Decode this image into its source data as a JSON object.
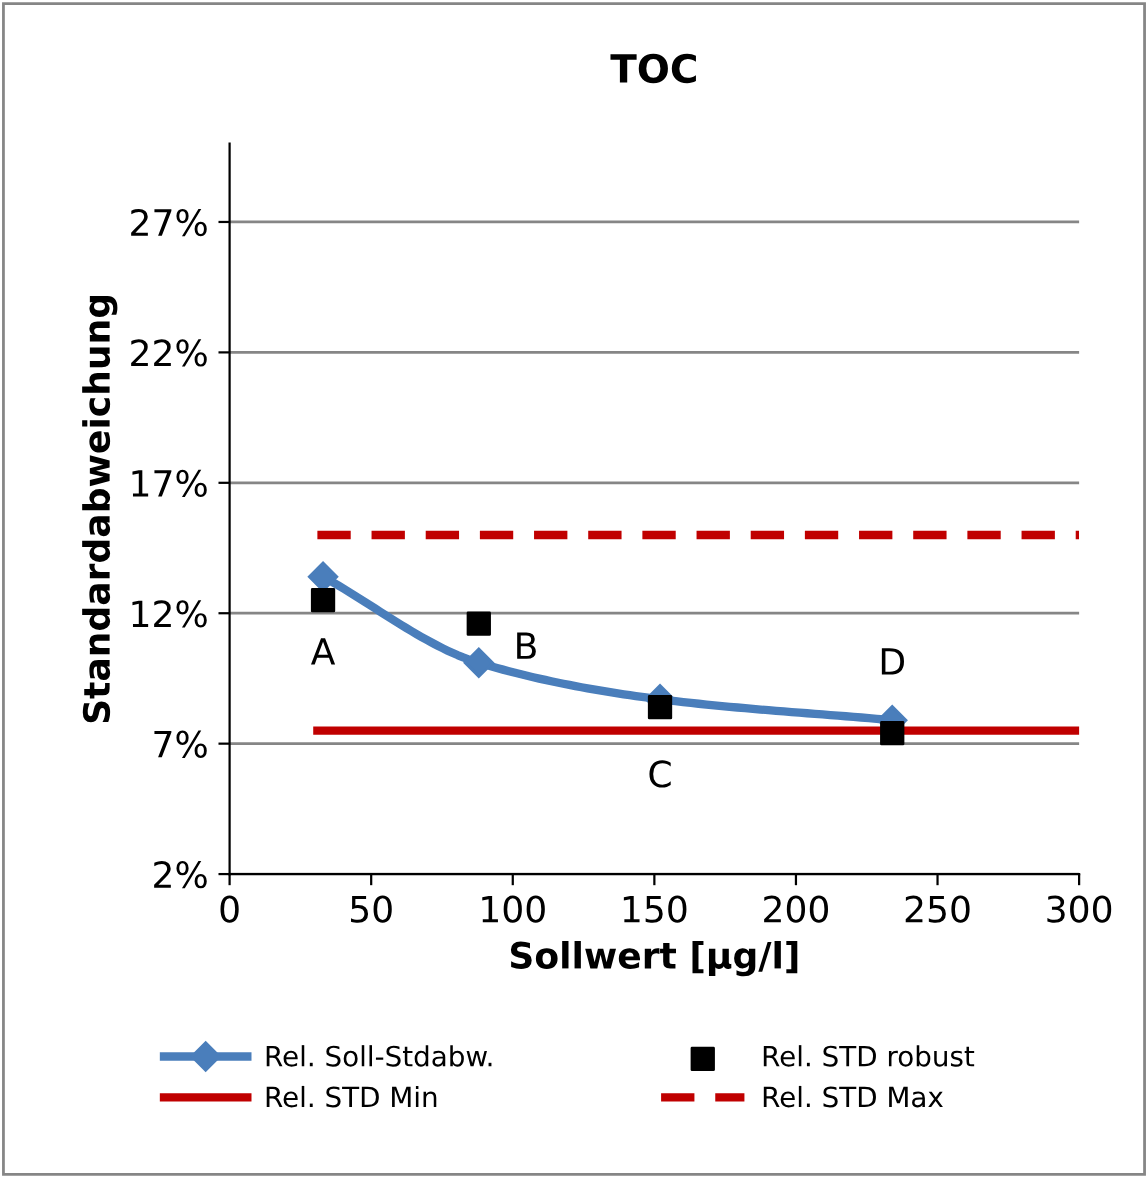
{
  "chart_data": {
    "type": "line",
    "title": "TOC",
    "xlabel": "Sollwert [µg/l]",
    "ylabel": "Standardabweichung",
    "xlim": [
      0,
      300
    ],
    "xticks": [
      0,
      50,
      100,
      150,
      200,
      250,
      300
    ],
    "ylim": [
      2,
      30
    ],
    "yticks": [
      {
        "value": 2,
        "label": "2%"
      },
      {
        "value": 7,
        "label": "7%"
      },
      {
        "value": 12,
        "label": "12%"
      },
      {
        "value": 17,
        "label": "17%"
      },
      {
        "value": 22,
        "label": "22%"
      },
      {
        "value": 27,
        "label": "27%"
      }
    ],
    "grid": "y",
    "legend": "bottom",
    "series": [
      {
        "name": "Rel. Soll-Stdabw.",
        "color": "#4a7ebb",
        "marker": "diamond",
        "line_style": "solid",
        "x": [
          33,
          88,
          152,
          234
        ],
        "values": [
          13.4,
          10.1,
          8.7,
          7.9
        ]
      },
      {
        "name": "Rel. STD robust",
        "type": "scatter",
        "color": "#000000",
        "marker": "square",
        "x": [
          33,
          88,
          152,
          234
        ],
        "values": [
          12.5,
          11.6,
          8.4,
          7.4
        ]
      },
      {
        "name": "Rel. STD Min",
        "color": "#c00000",
        "marker": "none",
        "line_style": "solid",
        "x": [
          31,
          300
        ],
        "values": [
          7.5,
          7.5
        ]
      },
      {
        "name": "Rel. STD Max",
        "color": "#c00000",
        "marker": "none",
        "line_style": "dashed",
        "x": [
          31,
          300
        ],
        "values": [
          15,
          15
        ]
      }
    ],
    "annotations": [
      "A",
      "B",
      "C",
      "D"
    ]
  }
}
